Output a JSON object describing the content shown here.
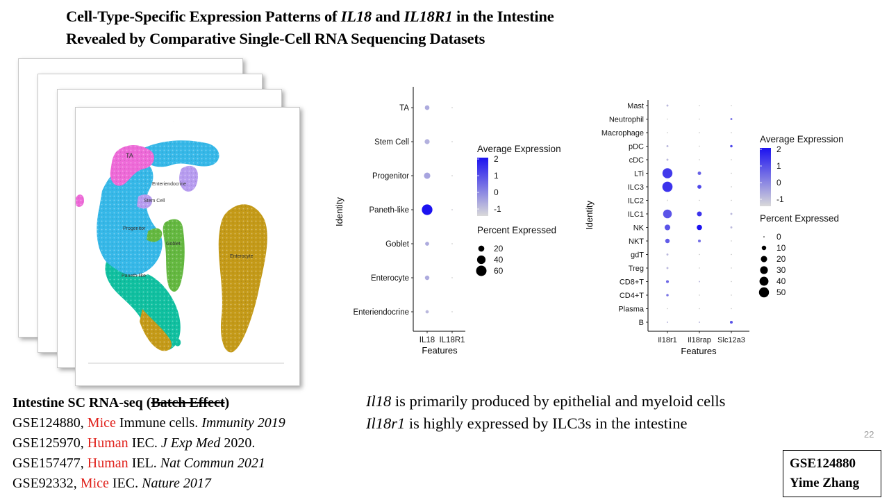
{
  "slide": {
    "title_line1_a": "Cell-Type-Specific Expression Patterns of ",
    "title_line1_b": "IL18",
    "title_line1_c": " and ",
    "title_line1_d": "IL18R1",
    "title_line1_e": " in the Intestine",
    "title_line2": "Revealed by Comparative Single-Cell RNA Sequencing Datasets",
    "page_number": "22"
  },
  "umap": {
    "cluster_labels": [
      "TA",
      "Stem Cell",
      "Enteriendocrine",
      "Progenitor",
      "Goblet",
      "Paneth-like",
      "Enterocyte"
    ],
    "colors": {
      "ta": "#ee6ad8",
      "stem": "#b79cf0",
      "progenitor": "#36b8e8",
      "goblet": "#64b840",
      "enterocyte": "#c49a18",
      "paneth": "#10c0a0"
    }
  },
  "references": {
    "heading_a": "Intestine SC RNA-seq (",
    "heading_b": "Batch Effect",
    "heading_c": ")",
    "rows": [
      {
        "id": "GSE124880, ",
        "species": "Mice",
        "desc": " Immune cells. ",
        "journal": "Immunity 2019",
        "tail": ""
      },
      {
        "id": "GSE125970, ",
        "species": "Human",
        "desc": " IEC. ",
        "journal": "J Exp Med",
        "tail": " 2020."
      },
      {
        "id": "GSE157477, ",
        "species": "Human",
        "desc": " IEL. ",
        "journal": "Nat Commun 2021",
        "tail": ""
      },
      {
        "id": "GSE92332, ",
        "species": "Mice",
        "desc": " IEC. ",
        "journal": "Nature 2017",
        "tail": ""
      }
    ]
  },
  "summary": {
    "line1_gene": "Il18",
    "line1_text": " is primarily produced by epithelial and myeloid cells",
    "line2_gene": "Il18r1",
    "line2_text": " is highly expressed by ILC3s in the intestine"
  },
  "id_box": {
    "line1": "GSE124880",
    "line2": "Yime Zhang"
  },
  "chart_data": [
    {
      "type": "scatter",
      "subtype": "dot_plot",
      "xlabel": "Features",
      "ylabel": "Identity",
      "features": [
        "IL18",
        "IL18R1"
      ],
      "identities": [
        "TA",
        "Stem Cell",
        "Progenitor",
        "Paneth-like",
        "Goblet",
        "Enterocyte",
        "Enteriendocrine"
      ],
      "percent_expressed": [
        [
          12,
          1
        ],
        [
          14,
          1
        ],
        [
          22,
          1
        ],
        [
          62,
          1
        ],
        [
          9,
          0
        ],
        [
          11,
          0
        ],
        [
          6,
          0
        ]
      ],
      "average_expression": [
        [
          -0.3,
          -1
        ],
        [
          -0.4,
          -1
        ],
        [
          -0.2,
          -1
        ],
        [
          2,
          -0.9
        ],
        [
          -0.3,
          -1
        ],
        [
          -0.3,
          -1
        ],
        [
          -0.5,
          -1
        ]
      ],
      "color_legend": {
        "title": "Average Expression",
        "ticks": [
          "2",
          "1",
          "0",
          "-1"
        ],
        "low": "#d9d9d9",
        "high": "#1c12f0"
      },
      "size_legend": {
        "title": "Percent Expressed",
        "ticks": [
          "20",
          "40",
          "60"
        ],
        "values": [
          20,
          40,
          60
        ]
      }
    },
    {
      "type": "scatter",
      "subtype": "dot_plot",
      "xlabel": "Features",
      "ylabel": "Identity",
      "features": [
        "Il18r1",
        "Il18rap",
        "Slc12a3"
      ],
      "identities": [
        "Mast",
        "Neutrophil",
        "Macrophage",
        "pDC",
        "cDC",
        "LTi",
        "ILC3",
        "ILC2",
        "ILC1",
        "NK",
        "NKT",
        "gdT",
        "Treg",
        "CD8+T",
        "CD4+T",
        "Plasma",
        "B"
      ],
      "percent_expressed": [
        [
          2,
          0,
          0
        ],
        [
          0,
          0,
          2
        ],
        [
          0,
          0,
          0
        ],
        [
          2,
          0,
          3
        ],
        [
          2,
          0,
          0
        ],
        [
          50,
          6,
          0
        ],
        [
          52,
          8,
          1
        ],
        [
          1,
          0,
          0
        ],
        [
          38,
          12,
          2
        ],
        [
          16,
          14,
          2
        ],
        [
          10,
          4,
          0
        ],
        [
          2,
          0,
          0
        ],
        [
          2,
          0,
          0
        ],
        [
          4,
          1,
          0
        ],
        [
          3,
          0,
          0
        ],
        [
          0,
          0,
          0
        ],
        [
          1,
          1,
          4
        ]
      ],
      "average_expression": [
        [
          -0.5,
          -1,
          -1
        ],
        [
          -1,
          -1,
          0.5
        ],
        [
          -1,
          -1,
          -1
        ],
        [
          -0.5,
          -1,
          1.2
        ],
        [
          -0.5,
          -1,
          -1
        ],
        [
          1.4,
          0.8,
          -1
        ],
        [
          1.5,
          1.2,
          -1
        ],
        [
          -1,
          -1,
          -1
        ],
        [
          1.0,
          1.5,
          -0.5
        ],
        [
          1.0,
          2.2,
          -0.5
        ],
        [
          0.9,
          0.6,
          -1
        ],
        [
          -0.5,
          -1,
          -1
        ],
        [
          -0.5,
          -1,
          -1
        ],
        [
          0.7,
          -0.5,
          -1
        ],
        [
          0.5,
          -1,
          -1
        ],
        [
          -1,
          -1,
          -1
        ],
        [
          -0.5,
          -0.5,
          1.0
        ]
      ],
      "color_legend": {
        "title": "Average Expression",
        "ticks": [
          "2",
          "1",
          "0",
          "-1"
        ],
        "low": "#d9d9d9",
        "high": "#1c12f0"
      },
      "size_legend": {
        "title": "Percent Expressed",
        "ticks": [
          "0",
          "10",
          "20",
          "30",
          "40",
          "50"
        ],
        "values": [
          0,
          10,
          20,
          30,
          40,
          50
        ]
      }
    }
  ]
}
